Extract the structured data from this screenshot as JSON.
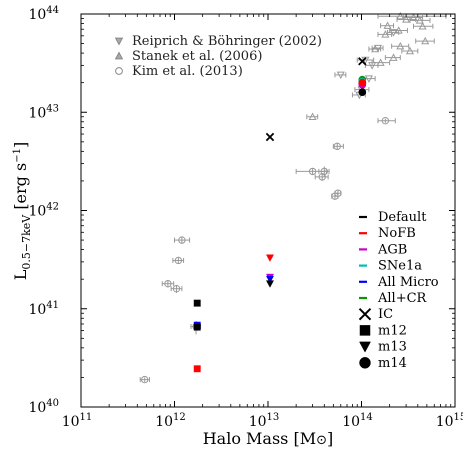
{
  "chart_data": {
    "type": "scatter",
    "title": "",
    "xlabel": "Halo Mass [M⊙]",
    "ylabel": "L0.5−7keV [erg s−1]",
    "xscale": "log",
    "yscale": "log",
    "xlim": [
      100000000000.0,
      1000000000000000.0
    ],
    "ylim": [
      1e+40,
      1e+44
    ],
    "x_ticks": [
      {
        "value": 100000000000.0,
        "base": "10",
        "exp": "11"
      },
      {
        "value": 1000000000000.0,
        "base": "10",
        "exp": "12"
      },
      {
        "value": 10000000000000.0,
        "base": "10",
        "exp": "13"
      },
      {
        "value": 100000000000000.0,
        "base": "10",
        "exp": "14"
      },
      {
        "value": 1000000000000000.0,
        "base": "10",
        "exp": "15"
      }
    ],
    "y_ticks": [
      {
        "value": 1e+40,
        "base": "10",
        "exp": "40"
      },
      {
        "value": 1e+41,
        "base": "10",
        "exp": "41"
      },
      {
        "value": 1e+42,
        "base": "10",
        "exp": "42"
      },
      {
        "value": 1e+43,
        "base": "10",
        "exp": "43"
      },
      {
        "value": 1e+44,
        "base": "10",
        "exp": "44"
      }
    ],
    "grid": false,
    "observational_legend_position": "top-left",
    "simulation_legend_position": "right",
    "reference_color": "#999999",
    "observational_series": [
      {
        "name": "Reiprich & Böhringer (2002)",
        "marker": "triangle-down",
        "points": [
          {
            "x": 110000000000000.0,
            "y": 3.4e+43,
            "xerr": [
              90000000000000.0,
              135000000000000.0
            ]
          },
          {
            "x": 150000000000000.0,
            "y": 4.5e+43,
            "xerr": [
              130000000000000.0,
              170000000000000.0
            ]
          },
          {
            "x": 130000000000000.0,
            "y": 3e+43,
            "xerr": [
              110000000000000.0,
              150000000000000.0
            ]
          },
          {
            "x": 120000000000000.0,
            "y": 2.2e+43,
            "xerr": [
              100000000000000.0,
              140000000000000.0
            ]
          },
          {
            "x": 100000000000000.0,
            "y": 1.7e+43,
            "xerr": [
              85000000000000.0,
              120000000000000.0
            ]
          },
          {
            "x": 95000000000000.0,
            "y": 1.5e+43,
            "xerr": [
              80000000000000.0,
              110000000000000.0
            ]
          },
          {
            "x": 60000000000000.0,
            "y": 2.4e+43,
            "xerr": [
              52000000000000.0,
              68000000000000.0
            ]
          },
          {
            "x": 220000000000000.0,
            "y": 6.5e+43,
            "xerr": [
              190000000000000.0,
              250000000000000.0
            ]
          }
        ]
      },
      {
        "name": "Stanek et al. (2006)",
        "marker": "triangle-up",
        "points": [
          {
            "x": 260000000000000.0,
            "y": 9.5e+43,
            "xerr": [
              150000000000000.0,
              800000000000000.0
            ]
          },
          {
            "x": 360000000000000.0,
            "y": 9.2e+43,
            "xerr": [
              280000000000000.0,
              450000000000000.0
            ]
          },
          {
            "x": 300000000000000.0,
            "y": 8.8e+43,
            "xerr": [
              240000000000000.0,
              380000000000000.0
            ]
          },
          {
            "x": 420000000000000.0,
            "y": 8.6e+43,
            "xerr": [
              330000000000000.0,
              540000000000000.0
            ]
          },
          {
            "x": 450000000000000.0,
            "y": 7.5e+43,
            "xerr": [
              360000000000000.0,
              580000000000000.0
            ]
          },
          {
            "x": 190000000000000.0,
            "y": 7.6e+43,
            "xerr": [
              160000000000000.0,
              220000000000000.0
            ]
          },
          {
            "x": 250000000000000.0,
            "y": 6.8e+43,
            "xerr": [
              200000000000000.0,
              310000000000000.0
            ]
          },
          {
            "x": 180000000000000.0,
            "y": 6.2e+43,
            "xerr": [
              150000000000000.0,
              210000000000000.0
            ]
          },
          {
            "x": 480000000000000.0,
            "y": 5.3e+43,
            "xerr": [
              380000000000000.0,
              600000000000000.0
            ]
          },
          {
            "x": 260000000000000.0,
            "y": 4.7e+43,
            "xerr": [
              210000000000000.0,
              320000000000000.0
            ]
          },
          {
            "x": 330000000000000.0,
            "y": 4.2e+43,
            "xerr": [
              270000000000000.0,
              400000000000000.0
            ]
          },
          {
            "x": 140000000000000.0,
            "y": 4.4e+43,
            "xerr": [
              120000000000000.0,
              160000000000000.0
            ]
          },
          {
            "x": 220000000000000.0,
            "y": 3.6e+43,
            "xerr": [
              180000000000000.0,
              260000000000000.0
            ]
          },
          {
            "x": 160000000000000.0,
            "y": 3.2e+43,
            "xerr": [
              130000000000000.0,
              200000000000000.0
            ]
          },
          {
            "x": 30000000000000.0,
            "y": 9e+42,
            "xerr": [
              26000000000000.0,
              34000000000000.0
            ]
          }
        ]
      },
      {
        "name": "Kim et al. (2013)",
        "marker": "circle-open",
        "points": [
          {
            "x": 1200000000000.0,
            "y": 5e+41,
            "xerr": [
              1000000000000.0,
              1450000000000.0
            ],
            "yerr": [
              4.6e+41,
              5.4e+41
            ]
          },
          {
            "x": 1100000000000.0,
            "y": 3.1e+41,
            "xerr": [
              960000000000.0,
              1250000000000.0
            ],
            "yerr": [
              2.9e+41,
              3.3e+41
            ]
          },
          {
            "x": 850000000000.0,
            "y": 1.8e+41,
            "xerr": [
              740000000000.0,
              980000000000.0
            ],
            "yerr": [
              1.65e+41,
              1.95e+41
            ]
          },
          {
            "x": 1050000000000.0,
            "y": 1.6e+41,
            "xerr": [
              920000000000.0,
              1200000000000.0
            ],
            "yerr": [
              1.45e+41,
              1.75e+41
            ]
          },
          {
            "x": 1700000000000.0,
            "y": 6.6e+40,
            "xerr": [
              1500000000000.0,
              1900000000000.0
            ],
            "yerr": [
              5.5e+40,
              7.5e+40
            ]
          },
          {
            "x": 480000000000.0,
            "y": 1.9e+40,
            "xerr": [
              430000000000.0,
              540000000000.0
            ],
            "yerr": [
              1.8e+40,
              2e+40
            ]
          },
          {
            "x": 30000000000000.0,
            "y": 2.5e+42,
            "xerr": [
              20000000000000.0,
              42000000000000.0
            ],
            "yerr": [
              2.3e+42,
              2.7e+42
            ]
          },
          {
            "x": 40000000000000.0,
            "y": 2.5e+42,
            "xerr": [
              35000000000000.0,
              45000000000000.0
            ],
            "yerr": [
              2.2e+42,
              2.8e+42
            ]
          },
          {
            "x": 38000000000000.0,
            "y": 2.2e+42,
            "xerr": [
              32000000000000.0,
              44000000000000.0
            ],
            "yerr": [
              2e+42,
              2.4e+42
            ]
          },
          {
            "x": 52000000000000.0,
            "y": 1.4e+42,
            "xerr": [
              48000000000000.0,
              56000000000000.0
            ],
            "yerr": [
              1.3e+42,
              1.5e+42
            ]
          },
          {
            "x": 56000000000000.0,
            "y": 1.5e+42,
            "xerr": [
              52000000000000.0,
              60000000000000.0
            ],
            "yerr": [
              1.4e+42,
              1.6e+42
            ]
          },
          {
            "x": 55000000000000.0,
            "y": 4.5e+42,
            "xerr": [
              50000000000000.0,
              64000000000000.0
            ],
            "yerr": [
              4.2e+42,
              4.8e+42
            ]
          },
          {
            "x": 180000000000000.0,
            "y": 8.2e+42,
            "xerr": [
              150000000000000.0,
              230000000000000.0
            ],
            "yerr": [
              7.8e+42,
              8.6e+42
            ]
          }
        ]
      }
    ],
    "simulation_physics": [
      {
        "name": "Default",
        "color": "#000000"
      },
      {
        "name": "NoFB",
        "color": "#ff0000"
      },
      {
        "name": "AGB",
        "color": "#cc00cc"
      },
      {
        "name": "SNe1a",
        "color": "#00bbbb"
      },
      {
        "name": "All Micro",
        "color": "#0000ff"
      },
      {
        "name": "All+CR",
        "color": "#009900"
      }
    ],
    "simulation_halos": [
      {
        "name": "IC",
        "marker": "x"
      },
      {
        "name": "m12",
        "marker": "square"
      },
      {
        "name": "m13",
        "marker": "triangle-down"
      },
      {
        "name": "m14",
        "marker": "circle"
      }
    ],
    "simulation_points": [
      {
        "physics": "NoFB",
        "halo": "m12",
        "x": 1750000000000.0,
        "y": 2.45e+40,
        "color": "#ff0000"
      },
      {
        "physics": "Default",
        "halo": "m12",
        "x": 1750000000000.0,
        "y": 1.14e+41,
        "color": "#000000"
      },
      {
        "physics": "All Micro",
        "halo": "m12",
        "x": 1750000000000.0,
        "y": 6.8e+40,
        "color": "#0000ff"
      },
      {
        "physics": "Default",
        "halo": "m12",
        "x": 1750000000000.0,
        "y": 6.5e+40,
        "color": "#000000"
      },
      {
        "physics": "Default",
        "halo": "IC",
        "x": 10500000000000.0,
        "y": 5.6e+42,
        "color": "#000000"
      },
      {
        "physics": "NoFB",
        "halo": "m13",
        "x": 10500000000000.0,
        "y": 3.3e+41,
        "color": "#ff0000"
      },
      {
        "physics": "AGB",
        "halo": "m13",
        "x": 10500000000000.0,
        "y": 2.1e+41,
        "color": "#cc00cc"
      },
      {
        "physics": "All Micro",
        "halo": "m13",
        "x": 10500000000000.0,
        "y": 2e+41,
        "color": "#0000ff"
      },
      {
        "physics": "Default",
        "halo": "m13",
        "x": 10500000000000.0,
        "y": 1.8e+41,
        "color": "#000000"
      },
      {
        "physics": "Default",
        "halo": "IC",
        "x": 102000000000000.0,
        "y": 3.3e+43,
        "color": "#000000"
      },
      {
        "physics": "All+CR",
        "halo": "m14",
        "x": 102000000000000.0,
        "y": 2.15e+43,
        "color": "#009900"
      },
      {
        "physics": "SNe1a",
        "halo": "m14",
        "x": 102000000000000.0,
        "y": 2.05e+43,
        "color": "#00bbbb"
      },
      {
        "physics": "All Micro",
        "halo": "m14",
        "x": 102000000000000.0,
        "y": 1.95e+43,
        "color": "#0000ff"
      },
      {
        "physics": "AGB",
        "halo": "m14",
        "x": 102000000000000.0,
        "y": 1.9e+43,
        "color": "#cc00cc"
      },
      {
        "physics": "NoFB",
        "halo": "m14",
        "x": 102000000000000.0,
        "y": 2e+43,
        "color": "#ff0000"
      },
      {
        "physics": "Default",
        "halo": "m14",
        "x": 102000000000000.0,
        "y": 1.6e+43,
        "color": "#000000"
      }
    ]
  }
}
